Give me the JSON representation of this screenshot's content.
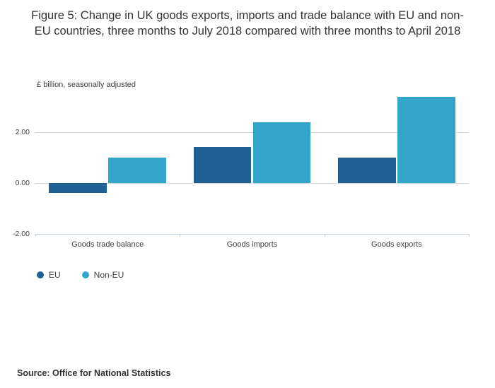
{
  "figure": {
    "title": "Figure 5: Change in UK goods exports, imports and trade balance with EU and non-EU countries, three months to July 2018 compared with three months to April 2018",
    "source": "Source: Office for National Statistics"
  },
  "chart_data": {
    "type": "bar",
    "subtitle": "£ billion, seasonally adjusted",
    "categories": [
      "Goods trade balance",
      "Goods imports",
      "Goods exports"
    ],
    "series": [
      {
        "name": "EU",
        "color": "#206095",
        "values": [
          -0.4,
          1.4,
          1.0
        ]
      },
      {
        "name": "Non-EU",
        "color": "#33a5cc",
        "values": [
          1.0,
          2.4,
          3.4
        ]
      }
    ],
    "ylim": [
      -2.0,
      3.6
    ],
    "yticks": [
      {
        "value": 2,
        "label": "2.00"
      },
      {
        "value": 0,
        "label": "0.00"
      },
      {
        "value": -2,
        "label": "-2.00"
      }
    ],
    "grid": "horizontal",
    "legend_position": "bottom-left"
  }
}
